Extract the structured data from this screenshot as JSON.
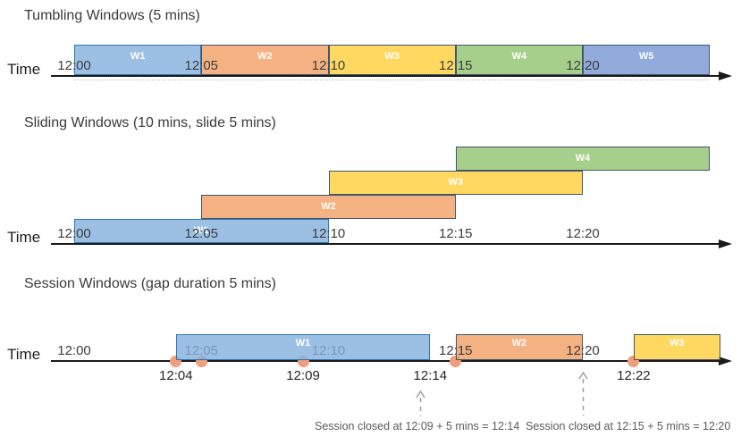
{
  "rows": [
    {
      "title": "Tumbling Windows (5 mins)",
      "time_label": "Time",
      "ticks": [
        {
          "label": "12:00",
          "min": 0
        },
        {
          "label": "12:05",
          "min": 5
        },
        {
          "label": "12:10",
          "min": 10
        },
        {
          "label": "12:15",
          "min": 15
        },
        {
          "label": "12:20",
          "min": 20
        }
      ],
      "windows": [
        {
          "label": "W1",
          "start_min": 0,
          "end_min": 5,
          "color": "blue"
        },
        {
          "label": "W2",
          "start_min": 5,
          "end_min": 10,
          "color": "orange"
        },
        {
          "label": "W3",
          "start_min": 10,
          "end_min": 15,
          "color": "yellow"
        },
        {
          "label": "W4",
          "start_min": 15,
          "end_min": 20,
          "color": "green"
        },
        {
          "label": "W5",
          "start_min": 20,
          "end_min": 25,
          "color": "periwinkle"
        }
      ]
    },
    {
      "title": "Sliding Windows (10 mins, slide 5 mins)",
      "time_label": "Time",
      "ticks": [
        {
          "label": "12:00",
          "min": 0
        },
        {
          "label": "12:05",
          "min": 5
        },
        {
          "label": "12:10",
          "min": 10
        },
        {
          "label": "12:15",
          "min": 15
        },
        {
          "label": "12:20",
          "min": 20
        }
      ],
      "windows": [
        {
          "label": "W1",
          "start_min": 0,
          "end_min": 10,
          "color": "blue",
          "level": 0
        },
        {
          "label": "W2",
          "start_min": 5,
          "end_min": 15,
          "color": "orange",
          "level": 1
        },
        {
          "label": "W3",
          "start_min": 10,
          "end_min": 20,
          "color": "yellow",
          "level": 2
        },
        {
          "label": "W4",
          "start_min": 15,
          "end_min": 25,
          "color": "green",
          "level": 3
        }
      ]
    },
    {
      "title": "Session Windows (gap duration 5 mins)",
      "time_label": "Time",
      "ticks": [
        {
          "label": "12:00",
          "min": 0
        },
        {
          "label": "12:05",
          "min": 5,
          "muted": true
        },
        {
          "label": "12:10",
          "min": 10,
          "muted": true
        },
        {
          "label": "12:15",
          "min": 15
        },
        {
          "label": "12:20",
          "min": 20
        }
      ],
      "windows": [
        {
          "label": "W1",
          "start_min": 4,
          "end_min": 14,
          "color": "blue"
        },
        {
          "label": "W2",
          "start_min": 15,
          "end_min": 20,
          "color": "orange"
        },
        {
          "label": "W3",
          "start_min": 22,
          "end_min": 25.4,
          "color": "yellow"
        }
      ],
      "events": [
        {
          "min": 4
        },
        {
          "min": 5
        },
        {
          "min": 9
        },
        {
          "min": 15
        },
        {
          "min": 22
        }
      ],
      "axis_sub_labels": [
        {
          "label": "12:04",
          "min": 4
        },
        {
          "label": "12:09",
          "min": 9
        },
        {
          "label": "12:14",
          "min": 14
        },
        {
          "label": "12:22",
          "min": 22
        }
      ],
      "annotations": [
        {
          "text": "Session closed at 12:09 + 5 mins = 12:14"
        },
        {
          "text": "Session closed at 12:15 + 5 mins = 12:20"
        }
      ]
    }
  ],
  "colors": {
    "blue": {
      "fill": "rgba(134,178,221,0.82)",
      "border": "#2E75B6"
    },
    "orange": {
      "fill": "rgba(242,160,101,0.82)",
      "border": "#44546A"
    },
    "yellow": {
      "fill": "rgba(255,208,64,0.82)",
      "border": "#44546A"
    },
    "green": {
      "fill": "rgba(148,196,115,0.82)",
      "border": "#44546A"
    },
    "periwinkle": {
      "fill": "rgba(120,152,212,0.82)",
      "border": "#44546A"
    },
    "event_dot": "#EF9E7B",
    "axis": "#1a1a1a",
    "annotation": "#5a5a5a"
  }
}
